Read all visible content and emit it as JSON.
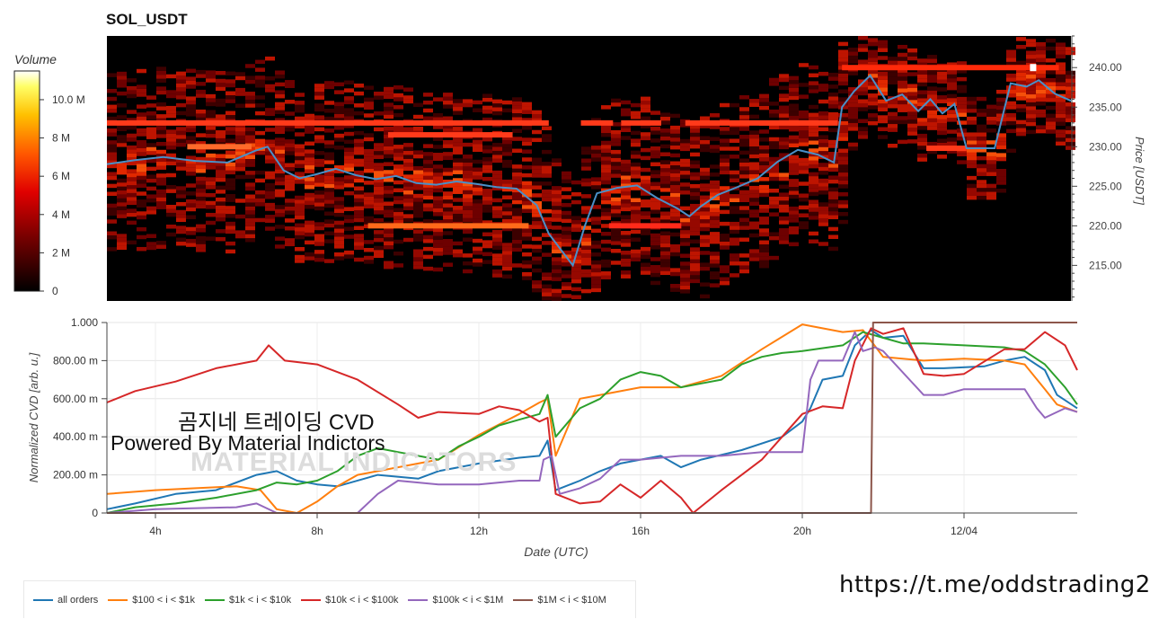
{
  "title": "SOL_USDT",
  "colorbar": {
    "title": "Volume",
    "ticks": [
      "10.0 M",
      "8 M",
      "6 M",
      "4 M",
      "2 M",
      "0"
    ]
  },
  "overlay": {
    "line1": "곰지네 트레이딩 CVD",
    "line2": "Powered By Material Indictors",
    "watermark": "MATERIAL INDICATORS"
  },
  "footer_link": "https://t.me/oddstrading2",
  "colors": {
    "heatmap_bg": "#000000",
    "price_line": "#4a90c8",
    "all_orders": "#1f77b4",
    "s100_1k": "#ff7f0e",
    "s1k_10k": "#2ca02c",
    "s10k_100k": "#d62728",
    "s100k_1m": "#9467bd",
    "s1m_10m": "#8c564b"
  },
  "chart_data": [
    {
      "type": "heatmap",
      "title": "SOL_USDT",
      "ylabel": "Price [USDT]",
      "ylim": [
        210.5,
        244
      ],
      "xlim": [
        2.8,
        26.8
      ],
      "y_ticks": [
        "215.00",
        "220.00",
        "225.00",
        "230.00",
        "235.00",
        "240.00"
      ],
      "colorbar_label": "Volume",
      "colorbar_range": [
        0,
        11500000
      ],
      "price_series": {
        "x": [
          2.8,
          3.5,
          4.2,
          5.0,
          5.8,
          6.5,
          6.8,
          7.2,
          7.6,
          8.0,
          8.5,
          9.0,
          9.5,
          10.0,
          10.5,
          11.0,
          11.5,
          12.0,
          12.5,
          13.0,
          13.5,
          13.8,
          14.1,
          14.4,
          14.7,
          15.0,
          15.5,
          16.0,
          16.5,
          17.0,
          17.3,
          17.6,
          18.0,
          18.5,
          19.0,
          19.5,
          20.0,
          20.5,
          20.9,
          21.1,
          21.4,
          21.8,
          22.2,
          22.6,
          23.0,
          23.3,
          23.6,
          23.9,
          24.2,
          24.5,
          24.9,
          25.3,
          25.7,
          26.0,
          26.4,
          26.8
        ],
        "y": [
          227.8,
          228.3,
          228.7,
          228.2,
          228.0,
          229.5,
          230.0,
          227.0,
          226.0,
          226.5,
          227.2,
          226.4,
          225.9,
          226.3,
          225.4,
          225.2,
          225.6,
          225.3,
          224.9,
          224.7,
          222.6,
          219.0,
          217.0,
          215.0,
          220.0,
          224.1,
          224.8,
          225.1,
          223.5,
          222.2,
          221.2,
          222.5,
          223.9,
          224.9,
          226.0,
          228.1,
          229.6,
          229.0,
          228.0,
          235.0,
          237.0,
          239.0,
          235.8,
          236.6,
          234.5,
          236.0,
          234.2,
          235.4,
          229.8,
          229.8,
          229.8,
          238.0,
          237.6,
          238.4,
          236.7,
          235.8
        ]
      }
    },
    {
      "type": "line",
      "xlabel": "Date (UTC)",
      "ylabel": "Normalized CVD [arb. u.]",
      "xlim": [
        2.8,
        26.8
      ],
      "ylim": [
        0,
        1.0
      ],
      "x_ticks": [
        {
          "x": 4,
          "label": "4h"
        },
        {
          "x": 8,
          "label": "8h"
        },
        {
          "x": 12,
          "label": "12h"
        },
        {
          "x": 16,
          "label": "16h"
        },
        {
          "x": 20,
          "label": "20h"
        },
        {
          "x": 24,
          "label": "12/04"
        }
      ],
      "y_ticks": [
        {
          "v": 0,
          "label": "0"
        },
        {
          "v": 0.2,
          "label": "200.00 m"
        },
        {
          "v": 0.4,
          "label": "400.00 m"
        },
        {
          "v": 0.6,
          "label": "600.00 m"
        },
        {
          "v": 0.8,
          "label": "800.00 m"
        },
        {
          "v": 1.0,
          "label": "1.000"
        }
      ],
      "grid": true,
      "legend_position": "bottom",
      "series": [
        {
          "name": "all orders",
          "color": "#1f77b4",
          "x": [
            2.8,
            3.5,
            4.5,
            5.5,
            6.5,
            7.0,
            7.5,
            8.0,
            8.5,
            9.5,
            10.5,
            11.0,
            12.0,
            13.0,
            13.5,
            13.7,
            13.9,
            14.5,
            15.0,
            15.5,
            16.0,
            16.5,
            17.0,
            17.5,
            18.5,
            19.5,
            20.0,
            20.2,
            20.5,
            21.0,
            21.3,
            21.7,
            22.0,
            22.5,
            23.0,
            23.5,
            24.5,
            25.0,
            25.5,
            26.0,
            26.3,
            26.8
          ],
          "y": [
            0.02,
            0.05,
            0.1,
            0.12,
            0.2,
            0.22,
            0.17,
            0.15,
            0.14,
            0.2,
            0.18,
            0.22,
            0.26,
            0.29,
            0.3,
            0.38,
            0.12,
            0.17,
            0.22,
            0.26,
            0.28,
            0.3,
            0.24,
            0.28,
            0.33,
            0.4,
            0.48,
            0.55,
            0.7,
            0.72,
            0.88,
            0.96,
            0.92,
            0.93,
            0.76,
            0.76,
            0.77,
            0.8,
            0.82,
            0.75,
            0.62,
            0.55
          ]
        },
        {
          "name": "$100 < i < $1k",
          "color": "#ff7f0e",
          "x": [
            2.8,
            4.0,
            5.0,
            6.0,
            6.6,
            7.0,
            7.5,
            8.0,
            8.5,
            9.0,
            9.5,
            10.0,
            11.0,
            12.0,
            13.0,
            13.5,
            13.7,
            13.9,
            14.5,
            15.0,
            16.0,
            17.0,
            18.0,
            19.0,
            20.0,
            20.5,
            21.0,
            21.5,
            22.0,
            23.0,
            24.0,
            25.0,
            25.5,
            26.0,
            26.3,
            26.8
          ],
          "y": [
            0.1,
            0.12,
            0.13,
            0.14,
            0.12,
            0.02,
            0.0,
            0.06,
            0.14,
            0.2,
            0.22,
            0.24,
            0.28,
            0.41,
            0.52,
            0.58,
            0.6,
            0.3,
            0.6,
            0.62,
            0.66,
            0.66,
            0.72,
            0.86,
            0.99,
            0.97,
            0.95,
            0.96,
            0.82,
            0.8,
            0.81,
            0.8,
            0.78,
            0.65,
            0.57,
            0.53
          ]
        },
        {
          "name": "$1k < i < $10k",
          "color": "#2ca02c",
          "x": [
            2.8,
            3.5,
            4.5,
            5.5,
            6.5,
            7.0,
            7.5,
            8.0,
            8.5,
            9.0,
            9.5,
            10.0,
            11.0,
            11.5,
            12.0,
            12.5,
            13.0,
            13.5,
            13.7,
            13.9,
            14.5,
            15.0,
            15.5,
            16.0,
            16.5,
            17.0,
            17.5,
            18.0,
            18.5,
            19.0,
            19.5,
            20.0,
            21.0,
            21.5,
            22.0,
            22.5,
            23.0,
            24.0,
            25.0,
            25.5,
            26.0,
            26.5,
            26.8
          ],
          "y": [
            0.0,
            0.03,
            0.05,
            0.08,
            0.12,
            0.16,
            0.15,
            0.17,
            0.22,
            0.3,
            0.34,
            0.32,
            0.28,
            0.35,
            0.4,
            0.46,
            0.49,
            0.52,
            0.62,
            0.4,
            0.55,
            0.6,
            0.7,
            0.74,
            0.72,
            0.66,
            0.68,
            0.7,
            0.78,
            0.82,
            0.84,
            0.85,
            0.88,
            0.95,
            0.92,
            0.89,
            0.89,
            0.88,
            0.87,
            0.85,
            0.78,
            0.66,
            0.57
          ]
        },
        {
          "name": "$10k < i < $100k",
          "color": "#d62728",
          "x": [
            2.8,
            3.5,
            4.5,
            5.5,
            6.5,
            6.8,
            7.2,
            8.0,
            9.0,
            10.0,
            10.5,
            11.0,
            12.0,
            12.5,
            13.0,
            13.5,
            13.7,
            13.9,
            14.5,
            15.0,
            15.5,
            16.0,
            16.5,
            17.0,
            17.3,
            18.0,
            19.0,
            20.0,
            20.5,
            21.0,
            21.3,
            21.7,
            22.0,
            22.5,
            23.0,
            23.5,
            24.0,
            25.0,
            25.5,
            26.0,
            26.5,
            26.8
          ],
          "y": [
            0.58,
            0.64,
            0.69,
            0.76,
            0.8,
            0.88,
            0.8,
            0.78,
            0.7,
            0.57,
            0.5,
            0.53,
            0.52,
            0.56,
            0.54,
            0.48,
            0.5,
            0.1,
            0.05,
            0.06,
            0.15,
            0.08,
            0.17,
            0.08,
            0.0,
            0.12,
            0.28,
            0.52,
            0.56,
            0.55,
            0.8,
            0.97,
            0.94,
            0.97,
            0.73,
            0.72,
            0.73,
            0.86,
            0.86,
            0.95,
            0.88,
            0.75
          ]
        },
        {
          "name": "$100k < i < $1M",
          "color": "#9467bd",
          "x": [
            2.8,
            4.0,
            6.0,
            6.5,
            7.0,
            8.0,
            9.0,
            9.5,
            10.0,
            11.0,
            12.0,
            13.0,
            13.5,
            13.6,
            13.8,
            14.0,
            14.5,
            15.0,
            15.5,
            16.0,
            17.0,
            18.0,
            19.0,
            19.5,
            20.0,
            20.2,
            20.4,
            21.0,
            21.3,
            21.5,
            21.8,
            22.0,
            23.0,
            23.5,
            24.0,
            25.0,
            25.5,
            25.8,
            26.0,
            26.5,
            26.8
          ],
          "y": [
            0.0,
            0.02,
            0.03,
            0.05,
            0.0,
            0.0,
            0.0,
            0.1,
            0.17,
            0.15,
            0.15,
            0.17,
            0.17,
            0.28,
            0.3,
            0.1,
            0.13,
            0.18,
            0.28,
            0.28,
            0.3,
            0.3,
            0.32,
            0.32,
            0.32,
            0.7,
            0.8,
            0.8,
            0.95,
            0.85,
            0.87,
            0.85,
            0.62,
            0.62,
            0.65,
            0.65,
            0.65,
            0.55,
            0.5,
            0.55,
            0.53
          ]
        },
        {
          "name": "$1M < i < $10M",
          "color": "#8c564b",
          "x": [
            2.8,
            21.5,
            21.7,
            21.75,
            26.8
          ],
          "y": [
            0.0,
            0.0,
            0.0,
            1.0,
            1.0
          ]
        }
      ]
    }
  ]
}
